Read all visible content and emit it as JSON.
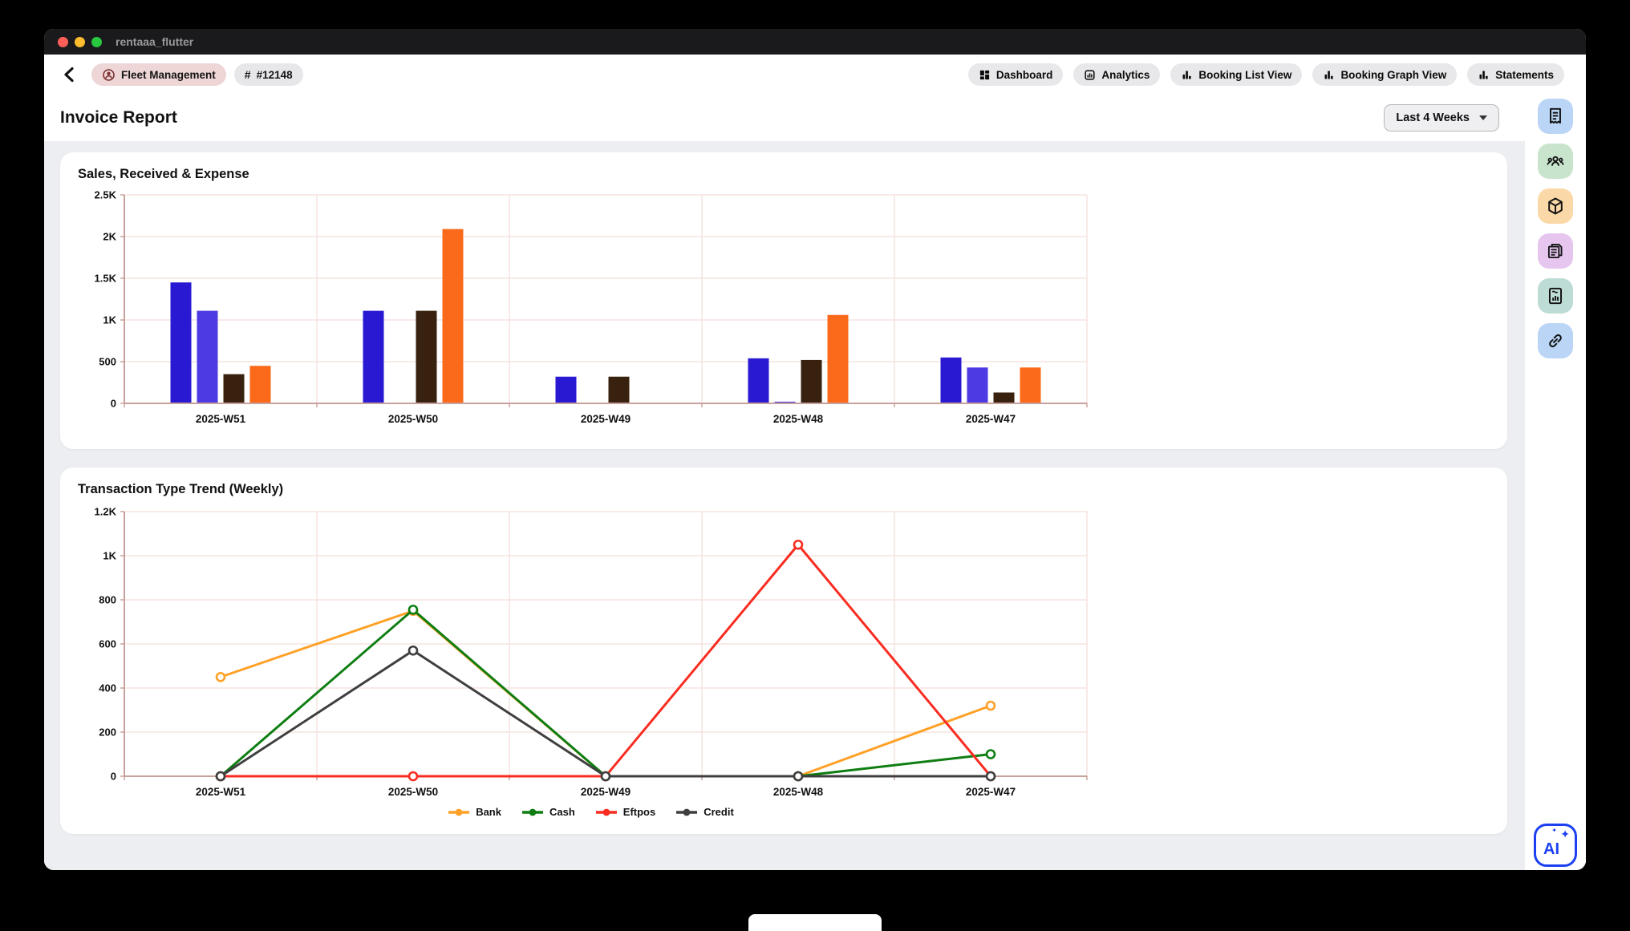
{
  "window": {
    "title": "rentaaa_flutter"
  },
  "topbar": {
    "chips": [
      {
        "label": "Fleet Management",
        "icon": "driver-badge-icon"
      },
      {
        "label": "#12148",
        "icon": "hash-icon"
      }
    ],
    "nav": [
      {
        "label": "Dashboard",
        "icon": "dashboard-icon"
      },
      {
        "label": "Analytics",
        "icon": "analytics-icon"
      },
      {
        "label": "Booking List View",
        "icon": "bar-chart-icon"
      },
      {
        "label": "Booking Graph View",
        "icon": "bar-chart-icon"
      },
      {
        "label": "Statements",
        "icon": "bar-chart-icon"
      }
    ]
  },
  "page": {
    "title": "Invoice Report",
    "range_button": "Last 4 Weeks"
  },
  "sidebar": {
    "icons": [
      {
        "name": "receipt-icon",
        "bg": "#bad5f5"
      },
      {
        "name": "groups-icon",
        "bg": "#c9e4cd"
      },
      {
        "name": "package-icon",
        "bg": "#fbd8a8"
      },
      {
        "name": "invoice-icon",
        "bg": "#e6c6ee"
      },
      {
        "name": "report-icon",
        "bg": "#bedcd6"
      },
      {
        "name": "link-icon",
        "bg": "#bad5f5"
      }
    ],
    "ai_label": "AI"
  },
  "colors": {
    "grid": "#f5e3df",
    "axis": "#c7a29c",
    "label": "#111111",
    "accent_blue": "#1c3ff2"
  },
  "chart_data": [
    {
      "type": "bar",
      "title": "Sales, Received & Expense",
      "categories": [
        "2025-W51",
        "2025-W50",
        "2025-W49",
        "2025-W48",
        "2025-W47"
      ],
      "series": [
        {
          "name": "blue",
          "color": "#2a19d3",
          "values": [
            1450,
            1110,
            320,
            540,
            550
          ]
        },
        {
          "name": "indigo",
          "color": "#4d3ae3",
          "values": [
            1110,
            0,
            0,
            20,
            430
          ]
        },
        {
          "name": "dark-brown",
          "color": "#38220f",
          "values": [
            350,
            1110,
            320,
            520,
            130
          ]
        },
        {
          "name": "orange",
          "color": "#fb6a1a",
          "values": [
            450,
            2090,
            0,
            1060,
            430
          ]
        }
      ],
      "ylim": [
        0,
        2500
      ],
      "yticks": [
        "0",
        "500",
        "1K",
        "1.5K",
        "2K",
        "2.5K"
      ],
      "grid": true,
      "legend": false
    },
    {
      "type": "line",
      "title": "Transaction Type Trend (Weekly)",
      "categories": [
        "2025-W51",
        "2025-W50",
        "2025-W49",
        "2025-W48",
        "2025-W47"
      ],
      "series": [
        {
          "name": "Bank",
          "color": "#ffa127",
          "values": [
            450,
            750,
            0,
            0,
            320
          ]
        },
        {
          "name": "Cash",
          "color": "#0e7e12",
          "values": [
            0,
            755,
            0,
            0,
            100
          ]
        },
        {
          "name": "Eftpos",
          "color": "#f92c21",
          "values": [
            0,
            0,
            0,
            1050,
            0
          ]
        },
        {
          "name": "Credit",
          "color": "#3f3f3f",
          "values": [
            0,
            570,
            0,
            0,
            0
          ]
        }
      ],
      "ylim": [
        0,
        1200
      ],
      "yticks": [
        "0",
        "200",
        "400",
        "600",
        "800",
        "1K",
        "1.2K"
      ],
      "grid": true,
      "legend": true,
      "legend_position": "bottom"
    }
  ]
}
